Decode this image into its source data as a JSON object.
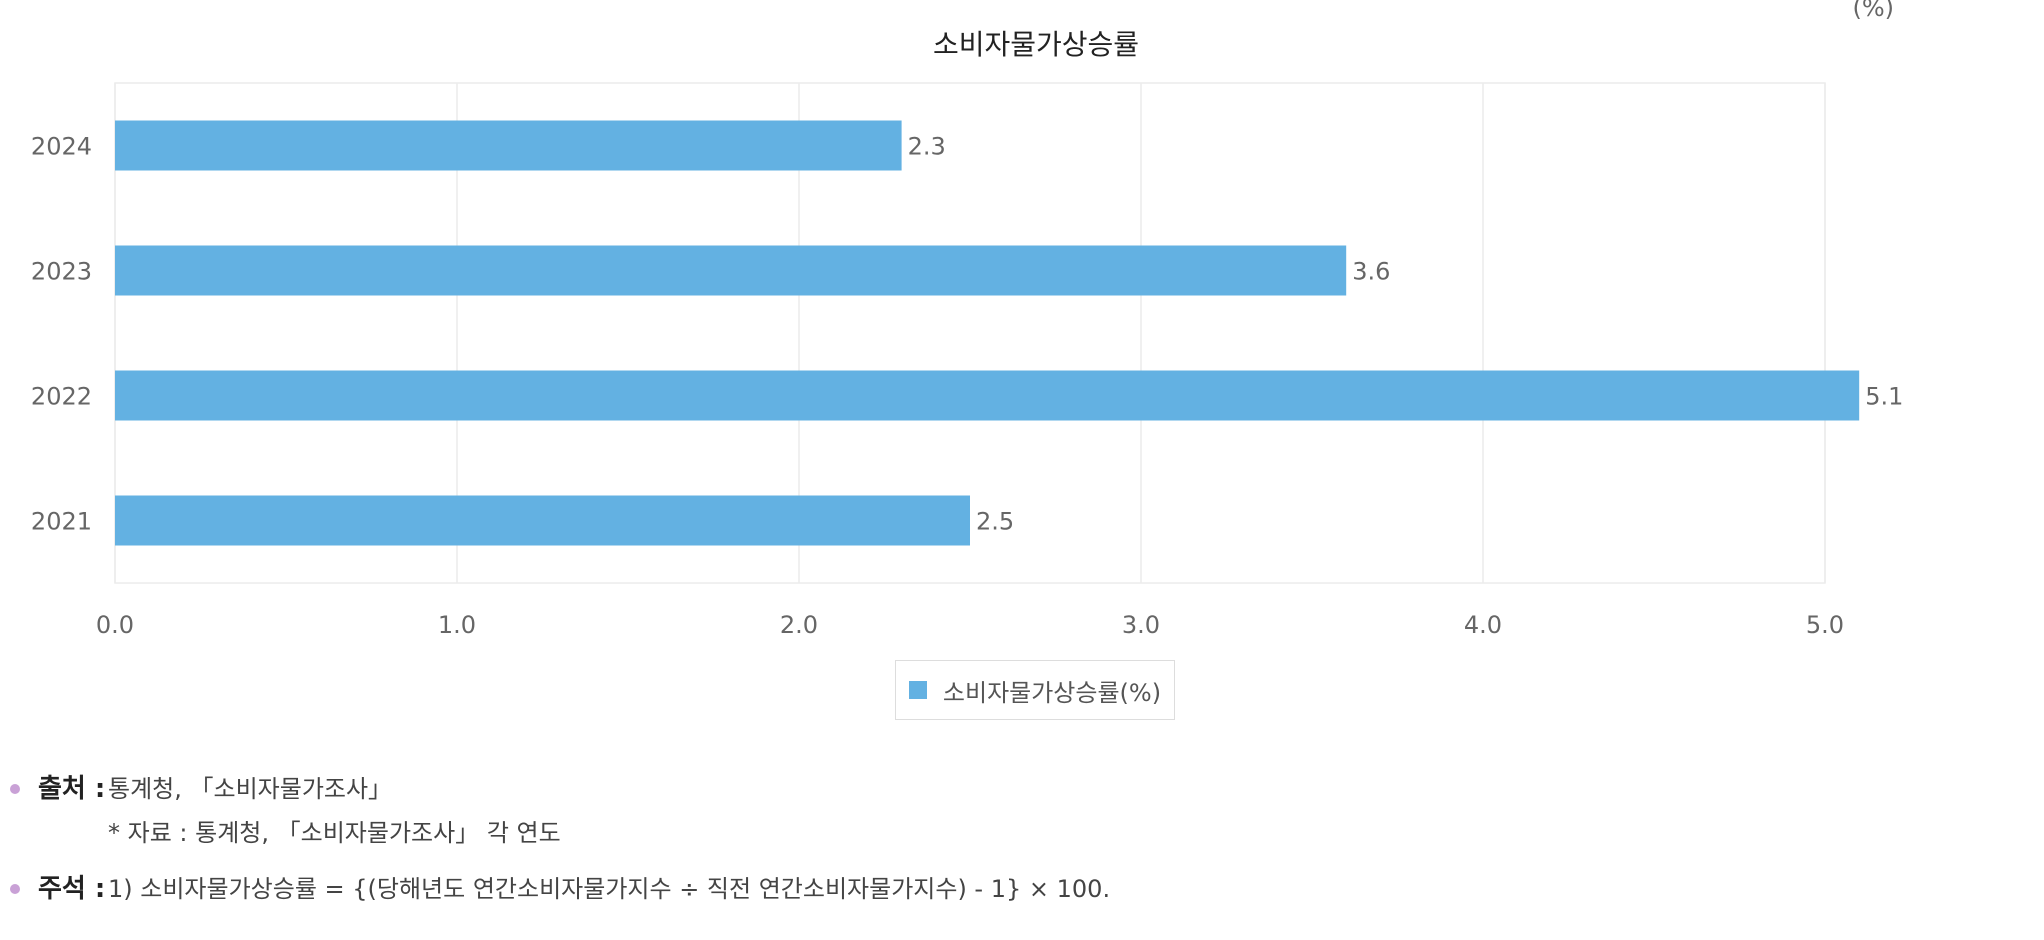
{
  "colors": {
    "bar": "#63b1e2",
    "grid": "#ececec",
    "axis_text": "#666666",
    "title_text": "#222222",
    "bullet": "#c9a1d6"
  },
  "chart_data": {
    "type": "bar",
    "orientation": "horizontal",
    "title": "소비자물가상승률",
    "unit": "(%)",
    "categories": [
      "2024",
      "2023",
      "2022",
      "2021"
    ],
    "series": [
      {
        "name": "소비자물가상승률(%)",
        "values": [
          2.3,
          3.6,
          5.1,
          2.5
        ],
        "labels": [
          "2.3",
          "3.6",
          "5.1",
          "2.5"
        ]
      }
    ],
    "xlim": [
      0,
      5
    ],
    "xticks": [
      0,
      1,
      2,
      3,
      4,
      5
    ],
    "xtick_labels": [
      "0.0",
      "1.0",
      "2.0",
      "3.0",
      "4.0",
      "5.0"
    ],
    "grid": true,
    "legend_position": "bottom-center"
  },
  "notes": {
    "source": {
      "key": "출처 :",
      "line1": "통계청, 「소비자물가조사」",
      "line2": "* 자료 : 통계청, 「소비자물가조사」 각 연도"
    },
    "footnote": {
      "key": "주석 :",
      "line1": "1) 소비자물가상승률 = {(당해년도 연간소비자물가지수 ÷ 직전 연간소비자물가지수) - 1} × 100."
    }
  }
}
